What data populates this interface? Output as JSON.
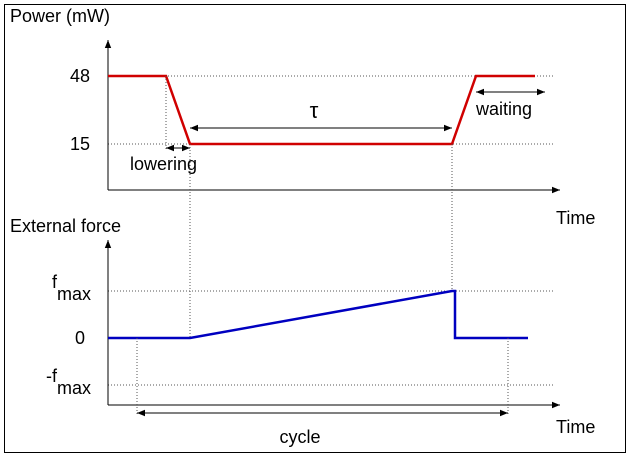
{
  "top": {
    "y_label": "Power (mW)",
    "ticks": [
      "48",
      "15"
    ],
    "tau": "τ",
    "lowering": "lowering",
    "waiting": "waiting",
    "x_label": "Time"
  },
  "bottom": {
    "y_label": "External force",
    "ticks": [
      {
        "main": "f",
        "sub": "max"
      },
      "0",
      {
        "main": "-f",
        "sub": "max"
      }
    ],
    "cycle": "cycle",
    "x_label": "Time"
  }
}
